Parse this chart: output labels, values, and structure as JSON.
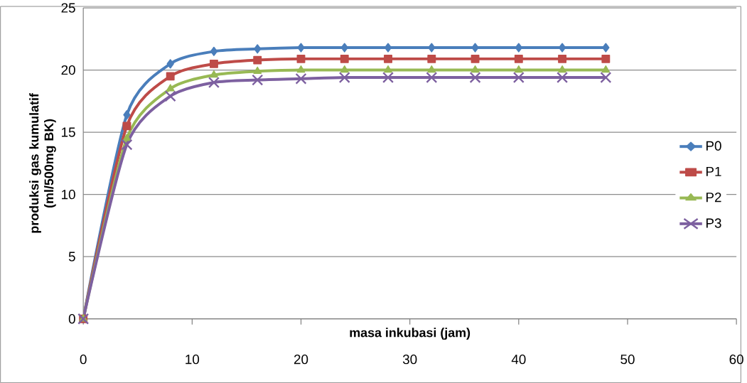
{
  "chart_data": {
    "type": "line",
    "xlabel": "masa inkubasi (jam)",
    "ylabel": "produksi gas kumulatif (ml/500mg BK)",
    "x": [
      0,
      4,
      8,
      12,
      16,
      20,
      24,
      28,
      32,
      36,
      40,
      44,
      48
    ],
    "xlim": [
      0,
      60
    ],
    "xticks": [
      0,
      10,
      20,
      30,
      40,
      50,
      60
    ],
    "ylim": [
      0,
      25
    ],
    "yticks": [
      0,
      5,
      10,
      15,
      20,
      25
    ],
    "grid": "y",
    "legend": "right",
    "line_style": "solid",
    "series": [
      {
        "name": "P0",
        "color": "#4a7ebb",
        "marker": "diamond",
        "values": [
          0,
          16.4,
          20.5,
          21.5,
          21.7,
          21.8,
          21.8,
          21.8,
          21.8,
          21.8,
          21.8,
          21.8,
          21.8
        ]
      },
      {
        "name": "P1",
        "color": "#be4b48",
        "marker": "square",
        "values": [
          0,
          15.5,
          19.5,
          20.5,
          20.8,
          20.9,
          20.9,
          20.9,
          20.9,
          20.9,
          20.9,
          20.9,
          20.9
        ]
      },
      {
        "name": "P2",
        "color": "#98b954",
        "marker": "triangle",
        "values": [
          0,
          14.5,
          18.5,
          19.6,
          19.9,
          20.0,
          20.0,
          20.0,
          20.0,
          20.0,
          20.0,
          20.0,
          20.0
        ]
      },
      {
        "name": "P3",
        "color": "#7d60a0",
        "marker": "cross",
        "values": [
          0,
          14.0,
          17.9,
          19.0,
          19.2,
          19.3,
          19.4,
          19.4,
          19.4,
          19.4,
          19.4,
          19.4,
          19.4
        ]
      }
    ]
  }
}
